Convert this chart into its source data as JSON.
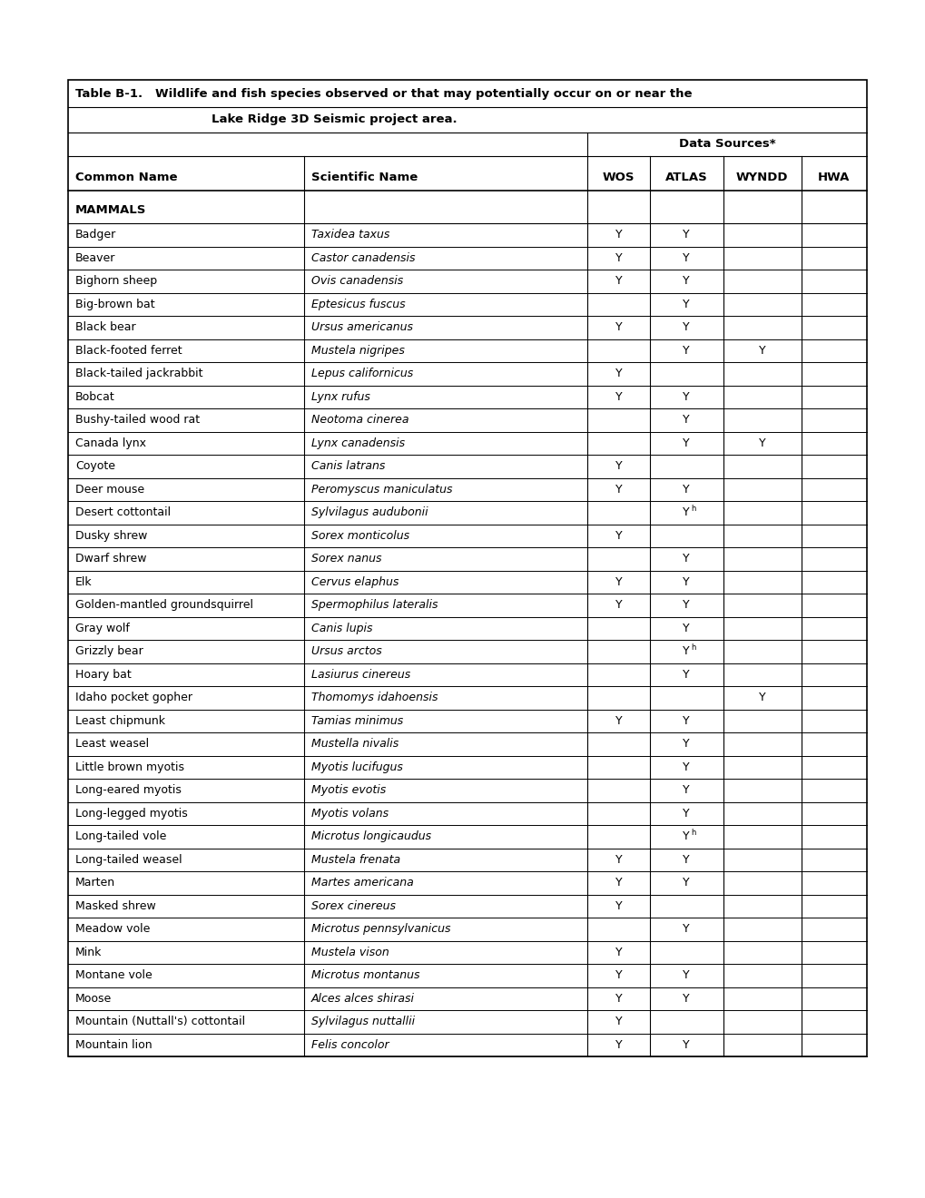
{
  "title_line1": "Table B-1.   Wildlife and fish species observed or that may potentially occur on or near the",
  "title_line2": "Lake Ridge 3D Seismic project area.",
  "col_headers": [
    "Common Name",
    "Scientific Name",
    "WOS",
    "ATLAS",
    "WYNDD",
    "HWA"
  ],
  "data_sources_label": "Data Sources*",
  "section_mammals": "MAMMALS",
  "rows": [
    [
      "Badger",
      "Taxidea taxus",
      "Y",
      "Y",
      "",
      ""
    ],
    [
      "Beaver",
      "Castor canadensis",
      "Y",
      "Y",
      "",
      ""
    ],
    [
      "Bighorn sheep",
      "Ovis canadensis",
      "Y",
      "Y",
      "",
      ""
    ],
    [
      "Big-brown bat",
      "Eptesicus fuscus",
      "",
      "Y",
      "",
      ""
    ],
    [
      "Black bear",
      "Ursus americanus",
      "Y",
      "Y",
      "",
      ""
    ],
    [
      "Black-footed ferret",
      "Mustela nigripes",
      "",
      "Y",
      "Y",
      ""
    ],
    [
      "Black-tailed jackrabbit",
      "Lepus californicus",
      "Y",
      "",
      "",
      ""
    ],
    [
      "Bobcat",
      "Lynx rufus",
      "Y",
      "Y",
      "",
      ""
    ],
    [
      "Bushy-tailed wood rat",
      "Neotoma cinerea",
      "",
      "Y",
      "",
      ""
    ],
    [
      "Canada lynx",
      "Lynx canadensis",
      "",
      "Y",
      "Y",
      ""
    ],
    [
      "Coyote",
      "Canis latrans",
      "Y",
      "",
      "",
      ""
    ],
    [
      "Deer mouse",
      "Peromyscus maniculatus",
      "Y",
      "Y",
      "",
      ""
    ],
    [
      "Desert cottontail",
      "Sylvilagus audubonii",
      "",
      "Yh",
      "",
      ""
    ],
    [
      "Dusky shrew",
      "Sorex monticolus",
      "Y",
      "",
      "",
      ""
    ],
    [
      "Dwarf shrew",
      "Sorex nanus",
      "",
      "Y",
      "",
      ""
    ],
    [
      "Elk",
      "Cervus elaphus",
      "Y",
      "Y",
      "",
      ""
    ],
    [
      "Golden-mantled groundsquirrel",
      "Spermophilus lateralis",
      "Y",
      "Y",
      "",
      ""
    ],
    [
      "Gray wolf",
      "Canis lupis",
      "",
      "Y",
      "",
      ""
    ],
    [
      "Grizzly bear",
      "Ursus arctos",
      "",
      "Yh",
      "",
      ""
    ],
    [
      "Hoary bat",
      "Lasiurus cinereus",
      "",
      "Y",
      "",
      ""
    ],
    [
      "Idaho pocket gopher",
      "Thomomys idahoensis",
      "",
      "",
      "Y",
      ""
    ],
    [
      "Least chipmunk",
      "Tamias minimus",
      "Y",
      "Y",
      "",
      ""
    ],
    [
      "Least weasel",
      "Mustella nivalis",
      "",
      "Y",
      "",
      ""
    ],
    [
      "Little brown myotis",
      "Myotis lucifugus",
      "",
      "Y",
      "",
      ""
    ],
    [
      "Long-eared myotis",
      "Myotis evotis",
      "",
      "Y",
      "",
      ""
    ],
    [
      "Long-legged myotis",
      "Myotis volans",
      "",
      "Y",
      "",
      ""
    ],
    [
      "Long-tailed vole",
      "Microtus longicaudus",
      "",
      "Yh",
      "",
      ""
    ],
    [
      "Long-tailed weasel",
      "Mustela frenata",
      "Y",
      "Y",
      "",
      ""
    ],
    [
      "Marten",
      "Martes americana",
      "Y",
      "Y",
      "",
      ""
    ],
    [
      "Masked shrew",
      "Sorex cinereus",
      "Y",
      "",
      "",
      ""
    ],
    [
      "Meadow vole",
      "Microtus pennsylvanicus",
      "",
      "Y",
      "",
      ""
    ],
    [
      "Mink",
      "Mustela vison",
      "Y",
      "",
      "",
      ""
    ],
    [
      "Montane vole",
      "Microtus montanus",
      "Y",
      "Y",
      "",
      ""
    ],
    [
      "Moose",
      "Alces alces shirasi",
      "Y",
      "Y",
      "",
      ""
    ],
    [
      "Mountain (Nuttall's) cottontail",
      "Sylvilagus nuttallii",
      "Y",
      "",
      "",
      ""
    ],
    [
      "Mountain lion",
      "Felis concolor",
      "Y",
      "Y",
      "",
      ""
    ]
  ],
  "bg_color": "#ffffff",
  "font_size": 9.5
}
